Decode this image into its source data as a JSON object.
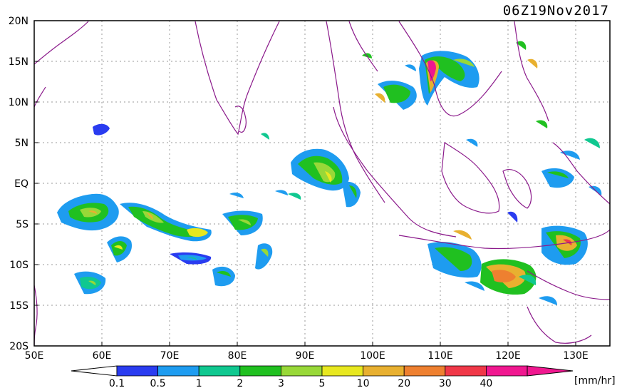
{
  "map": {
    "title": "06Z19Nov2017",
    "lat_labels": [
      "20N",
      "15N",
      "10N",
      "5N",
      "EQ",
      "5S",
      "10S",
      "15S",
      "20S"
    ],
    "lon_labels": [
      "50E",
      "60E",
      "70E",
      "80E",
      "90E",
      "100E",
      "110E",
      "120E",
      "130E"
    ],
    "gridlines": "dotted",
    "coastline_color": "#8b1a8b"
  },
  "legend": {
    "units": "[mm/hr]",
    "tick_labels": [
      "0.1",
      "0.5",
      "1",
      "2",
      "3",
      "5",
      "10",
      "20",
      "30",
      "40"
    ],
    "colors": [
      "#2a3cf0",
      "#1e9cf0",
      "#10c890",
      "#20c020",
      "#98d838",
      "#e8e820",
      "#e8b030",
      "#ee8030",
      "#f03848",
      "#f01890"
    ]
  }
}
